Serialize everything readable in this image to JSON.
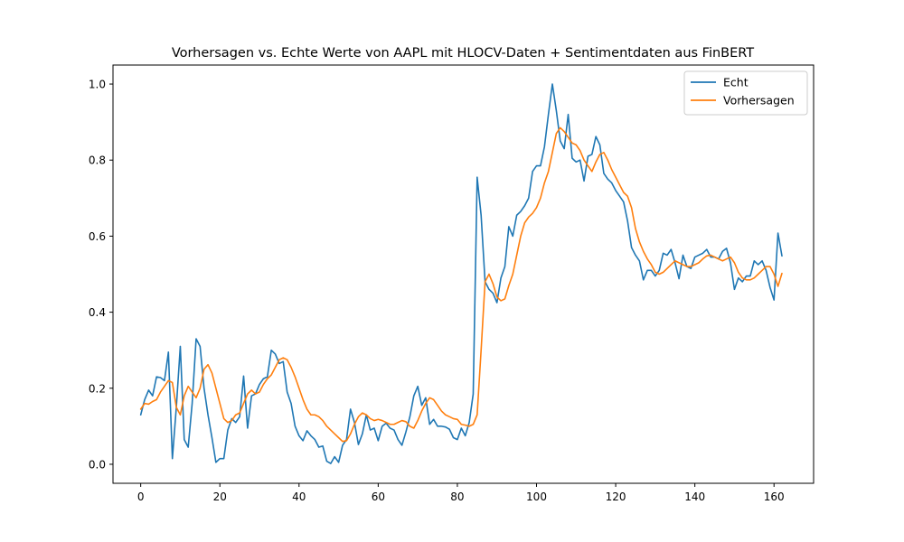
{
  "chart_data": {
    "type": "line",
    "title": "Vorhersagen vs. Echte Werte von AAPL mit HLOCV-Daten + Sentimentdaten aus FinBERT",
    "xlabel": "",
    "ylabel": "",
    "xlim": [
      -7,
      170
    ],
    "ylim": [
      -0.05,
      1.05
    ],
    "x_ticks": [
      0,
      20,
      40,
      60,
      80,
      100,
      120,
      140,
      160
    ],
    "y_ticks": [
      0.0,
      0.2,
      0.4,
      0.6,
      0.8,
      1.0
    ],
    "x_tick_labels": [
      "0",
      "20",
      "40",
      "60",
      "80",
      "100",
      "120",
      "140",
      "160"
    ],
    "y_tick_labels": [
      "0.0",
      "0.2",
      "0.4",
      "0.6",
      "0.8",
      "1.0"
    ],
    "grid": false,
    "legend_position": "top-right",
    "series": [
      {
        "name": "Echt",
        "color": "#1f77b4",
        "values": [
          0.13,
          0.17,
          0.195,
          0.18,
          0.23,
          0.228,
          0.22,
          0.295,
          0.015,
          0.15,
          0.31,
          0.065,
          0.045,
          0.16,
          0.33,
          0.31,
          0.2,
          0.13,
          0.07,
          0.005,
          0.015,
          0.015,
          0.09,
          0.12,
          0.11,
          0.125,
          0.232,
          0.095,
          0.18,
          0.185,
          0.21,
          0.225,
          0.23,
          0.3,
          0.29,
          0.265,
          0.27,
          0.19,
          0.16,
          0.1,
          0.075,
          0.062,
          0.088,
          0.075,
          0.065,
          0.045,
          0.048,
          0.008,
          0.002,
          0.02,
          0.005,
          0.05,
          0.065,
          0.145,
          0.11,
          0.052,
          0.08,
          0.13,
          0.09,
          0.095,
          0.062,
          0.1,
          0.108,
          0.095,
          0.09,
          0.065,
          0.05,
          0.085,
          0.125,
          0.18,
          0.205,
          0.155,
          0.175,
          0.105,
          0.118,
          0.1,
          0.1,
          0.098,
          0.092,
          0.07,
          0.065,
          0.095,
          0.075,
          0.11,
          0.185,
          0.755,
          0.655,
          0.48,
          0.46,
          0.45,
          0.425,
          0.49,
          0.52,
          0.625,
          0.6,
          0.655,
          0.665,
          0.68,
          0.7,
          0.77,
          0.785,
          0.785,
          0.835,
          0.92,
          1.0,
          0.93,
          0.85,
          0.83,
          0.92,
          0.805,
          0.795,
          0.8,
          0.745,
          0.81,
          0.815,
          0.862,
          0.84,
          0.765,
          0.75,
          0.74,
          0.72,
          0.705,
          0.69,
          0.64,
          0.57,
          0.55,
          0.535,
          0.485,
          0.51,
          0.51,
          0.495,
          0.51,
          0.555,
          0.55,
          0.565,
          0.53,
          0.488,
          0.55,
          0.52,
          0.515,
          0.545,
          0.55,
          0.555,
          0.565,
          0.545,
          0.545,
          0.54,
          0.56,
          0.568,
          0.53,
          0.46,
          0.49,
          0.48,
          0.495,
          0.495,
          0.535,
          0.525,
          0.535,
          0.51,
          0.465,
          0.432,
          0.608,
          0.548
        ]
      },
      {
        "name": "Vorhersagen",
        "color": "#ff7f0e",
        "values": [
          0.145,
          0.16,
          0.158,
          0.165,
          0.17,
          0.19,
          0.205,
          0.22,
          0.215,
          0.15,
          0.13,
          0.18,
          0.205,
          0.19,
          0.175,
          0.2,
          0.25,
          0.262,
          0.24,
          0.2,
          0.16,
          0.12,
          0.11,
          0.115,
          0.13,
          0.135,
          0.16,
          0.185,
          0.195,
          0.185,
          0.19,
          0.21,
          0.225,
          0.235,
          0.255,
          0.275,
          0.28,
          0.275,
          0.255,
          0.23,
          0.2,
          0.17,
          0.145,
          0.13,
          0.13,
          0.125,
          0.115,
          0.1,
          0.09,
          0.08,
          0.07,
          0.06,
          0.062,
          0.08,
          0.105,
          0.125,
          0.135,
          0.13,
          0.12,
          0.115,
          0.118,
          0.115,
          0.11,
          0.105,
          0.105,
          0.11,
          0.115,
          0.112,
          0.1,
          0.095,
          0.115,
          0.14,
          0.16,
          0.175,
          0.17,
          0.155,
          0.14,
          0.13,
          0.125,
          0.12,
          0.118,
          0.105,
          0.103,
          0.1,
          0.105,
          0.13,
          0.3,
          0.48,
          0.5,
          0.475,
          0.44,
          0.43,
          0.435,
          0.47,
          0.5,
          0.55,
          0.6,
          0.635,
          0.65,
          0.66,
          0.675,
          0.7,
          0.74,
          0.77,
          0.82,
          0.87,
          0.885,
          0.875,
          0.86,
          0.845,
          0.84,
          0.825,
          0.8,
          0.785,
          0.77,
          0.795,
          0.815,
          0.82,
          0.8,
          0.775,
          0.755,
          0.735,
          0.715,
          0.705,
          0.675,
          0.62,
          0.585,
          0.56,
          0.54,
          0.525,
          0.505,
          0.5,
          0.505,
          0.515,
          0.525,
          0.535,
          0.53,
          0.525,
          0.52,
          0.52,
          0.525,
          0.53,
          0.54,
          0.548,
          0.55,
          0.545,
          0.54,
          0.535,
          0.54,
          0.545,
          0.53,
          0.505,
          0.49,
          0.485,
          0.485,
          0.49,
          0.5,
          0.51,
          0.52,
          0.52,
          0.5,
          0.468,
          0.502
        ]
      }
    ]
  }
}
